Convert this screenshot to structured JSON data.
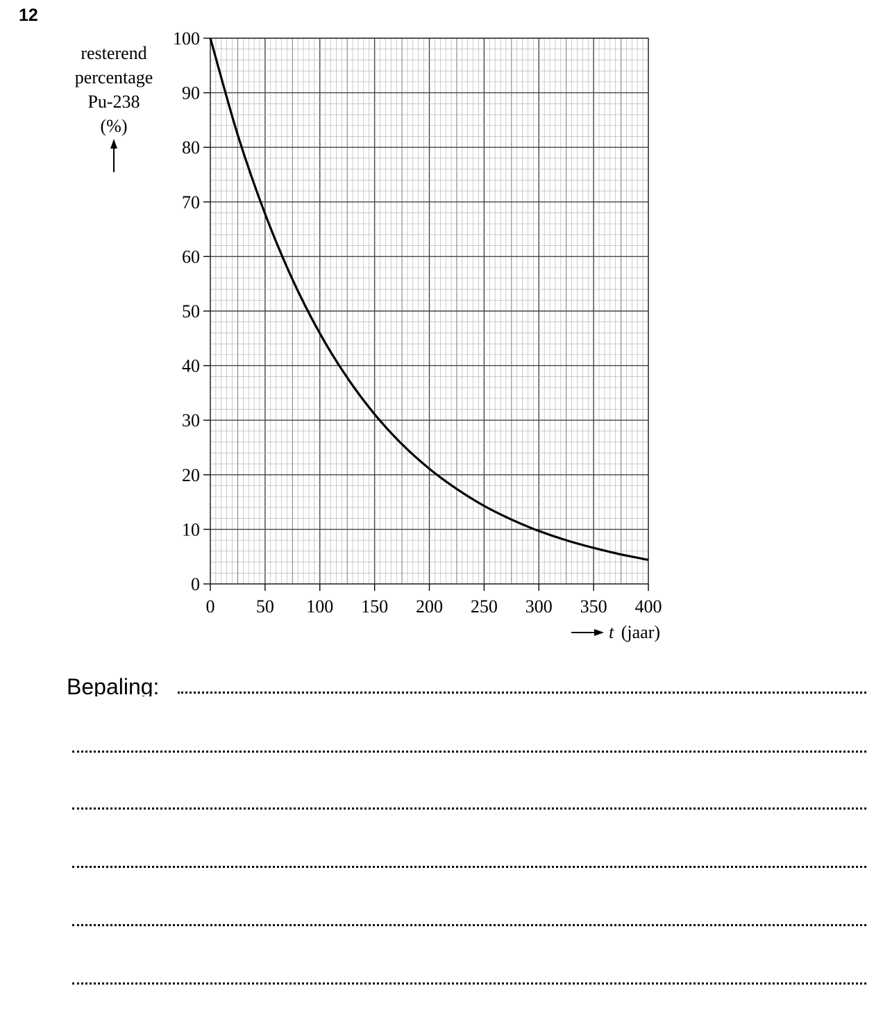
{
  "question_number": "12",
  "chart_data": {
    "type": "line",
    "title": "",
    "ylabel": [
      "resterend",
      "percentage",
      "Pu-238",
      "(%)"
    ],
    "xlabel": "t (jaar)",
    "xlabel_var": "t",
    "xlabel_unit": "(jaar)",
    "xlim": [
      0,
      400
    ],
    "ylim": [
      0,
      100
    ],
    "x_ticks": [
      0,
      50,
      100,
      150,
      200,
      250,
      300,
      350,
      400
    ],
    "y_ticks": [
      0,
      10,
      20,
      30,
      40,
      50,
      60,
      70,
      80,
      90,
      100
    ],
    "grid": true,
    "series": [
      {
        "x": [
          0,
          25,
          50,
          75,
          100,
          125,
          150,
          175,
          200,
          225,
          250,
          275,
          300,
          325,
          350,
          375,
          400
        ],
        "values": [
          100,
          82.3,
          67.8,
          55.8,
          45.9,
          37.8,
          31.1,
          25.6,
          21.1,
          17.4,
          14.3,
          11.8,
          9.7,
          8.0,
          6.6,
          5.4,
          4.4
        ]
      }
    ]
  },
  "answer": {
    "label": "Bepaling:",
    "line_count": 6
  }
}
